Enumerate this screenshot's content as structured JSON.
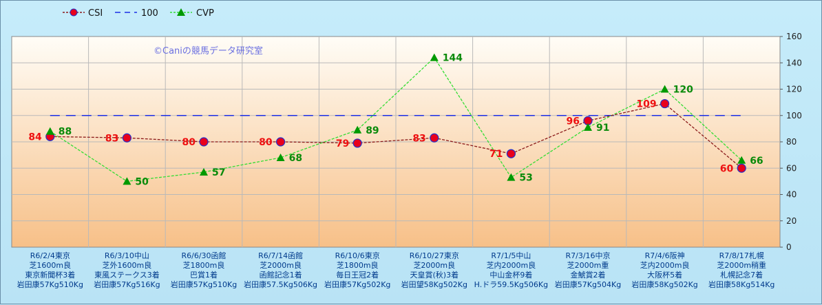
{
  "watermark": "©Caniの競馬データ研究室",
  "colors": {
    "csi_line": "#8b1a1a",
    "csi_marker": "#e8001c",
    "csi_marker_edge": "#2233cc",
    "csi_text": "#ee1111",
    "cvp_line": "#33dd33",
    "cvp_marker": "#009900",
    "cvp_text": "#0a8a0a",
    "ref_line": "#1a2ee6",
    "grid": "#b9b9b9",
    "plot_top": "#fffdf7",
    "plot_bottom": "#f7c088"
  },
  "chart_data": {
    "type": "line",
    "title": "",
    "xlabel": "",
    "ylabel": "",
    "ylim": [
      0,
      160
    ],
    "y_ticks": [
      0,
      20,
      40,
      60,
      80,
      100,
      120,
      140,
      160
    ],
    "y_tick_labels": [
      "0",
      "20",
      "40",
      "60",
      "80",
      "100",
      "120",
      "140",
      "160"
    ],
    "y_axis_side": "right",
    "grid": true,
    "legend_position": "top-left",
    "categories": [
      [
        "R6/2/4東京",
        "芝1600m良",
        "東京新聞杯3着",
        "岩田康57Kg510Kg"
      ],
      [
        "R6/3/10中山",
        "芝外1600m良",
        "東風ステークス3着",
        "岩田康57Kg516Kg"
      ],
      [
        "R6/6/30函館",
        "芝1800m良",
        "巴賞1着",
        "岩田康57Kg510Kg"
      ],
      [
        "R6/7/14函館",
        "芝2000m良",
        "函館記念1着",
        "岩田康57.5Kg506Kg"
      ],
      [
        "R6/10/6東京",
        "芝1800m良",
        "毎日王冠2着",
        "岩田康57Kg502Kg"
      ],
      [
        "R6/10/27東京",
        "芝2000m良",
        "天皇賞(秋)3着",
        "岩田望58Kg502Kg"
      ],
      [
        "R7/1/5中山",
        "芝内2000m良",
        "中山金杯9着",
        "H.ドラ59.5Kg506Kg"
      ],
      [
        "R7/3/16中京",
        "芝2000m重",
        "金鯱賞2着",
        "岩田康57Kg504Kg"
      ],
      [
        "R7/4/6阪神",
        "芝内2000m良",
        "大阪杯5着",
        "岩田康58Kg502Kg"
      ],
      [
        "R7/8/17札幌",
        "芝2000m稍重",
        "札幌記念7着",
        "岩田康58Kg514Kg"
      ]
    ],
    "series": [
      {
        "name": "CSI",
        "values": [
          84,
          83,
          80,
          80,
          79,
          83,
          71,
          96,
          109,
          60
        ],
        "labels": [
          "84",
          "83",
          "80",
          "80",
          "79",
          "83",
          "71",
          "96",
          "109",
          "60"
        ]
      },
      {
        "name": "100",
        "values": [
          100,
          100,
          100,
          100,
          100,
          100,
          100,
          100,
          100,
          100
        ]
      },
      {
        "name": "CVP",
        "values": [
          88,
          50,
          57,
          68,
          89,
          144,
          53,
          91,
          120,
          66
        ],
        "labels": [
          "88",
          "50",
          "57",
          "68",
          "89",
          "144",
          "53",
          "91",
          "120",
          "66"
        ]
      }
    ]
  }
}
